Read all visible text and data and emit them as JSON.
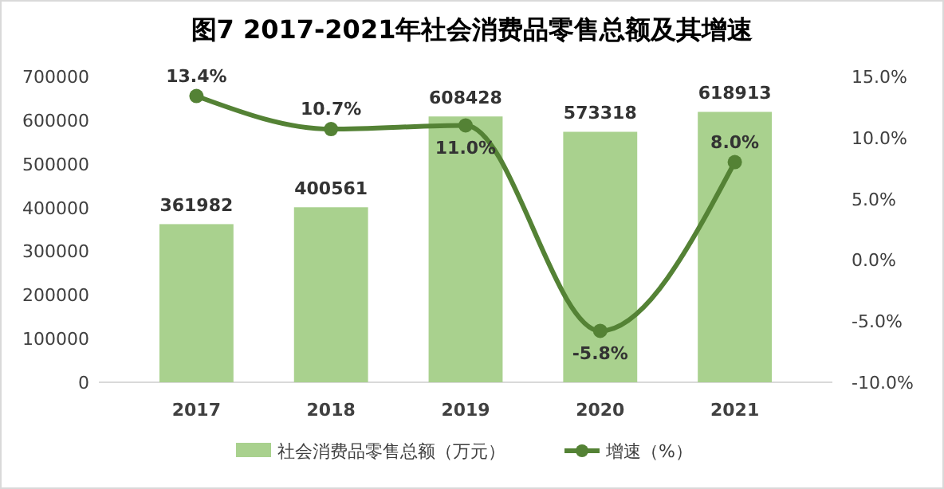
{
  "chart_data": {
    "type": "bar",
    "title": "图7 2017-2021年社会消费品零售总额及其增速",
    "categories": [
      "2017",
      "2018",
      "2019",
      "2020",
      "2021"
    ],
    "series": [
      {
        "name": "社会消费品零售总额（万元）",
        "color": "#a9d18e",
        "values": [
          361982,
          400561,
          608428,
          573318,
          618913
        ],
        "value_labels": [
          "361982",
          "400561",
          "608428",
          "573318",
          "618913"
        ]
      },
      {
        "name": "增速（%）",
        "type": "line",
        "axis": "y2",
        "color": "#548235",
        "values": [
          13.4,
          10.7,
          11.0,
          -5.8,
          8.0
        ],
        "value_labels": [
          "13.4%",
          "10.7%",
          "11.0%",
          "-5.8%",
          "8.0%"
        ],
        "marker": "circle"
      }
    ],
    "ylim": [
      0,
      700000
    ],
    "yticks": [
      0,
      100000,
      200000,
      300000,
      400000,
      500000,
      600000,
      700000
    ],
    "y2lim": [
      -10,
      15
    ],
    "y2ticks": [
      {
        "value": -10,
        "label": "-10.0%"
      },
      {
        "value": -5,
        "label": "-5.0%"
      },
      {
        "value": 0,
        "label": "0.0%"
      },
      {
        "value": 5,
        "label": "5.0%"
      },
      {
        "value": 10,
        "label": "10.0%"
      },
      {
        "value": 15,
        "label": "15.0%"
      }
    ],
    "grid": false,
    "legend": "bottom"
  }
}
